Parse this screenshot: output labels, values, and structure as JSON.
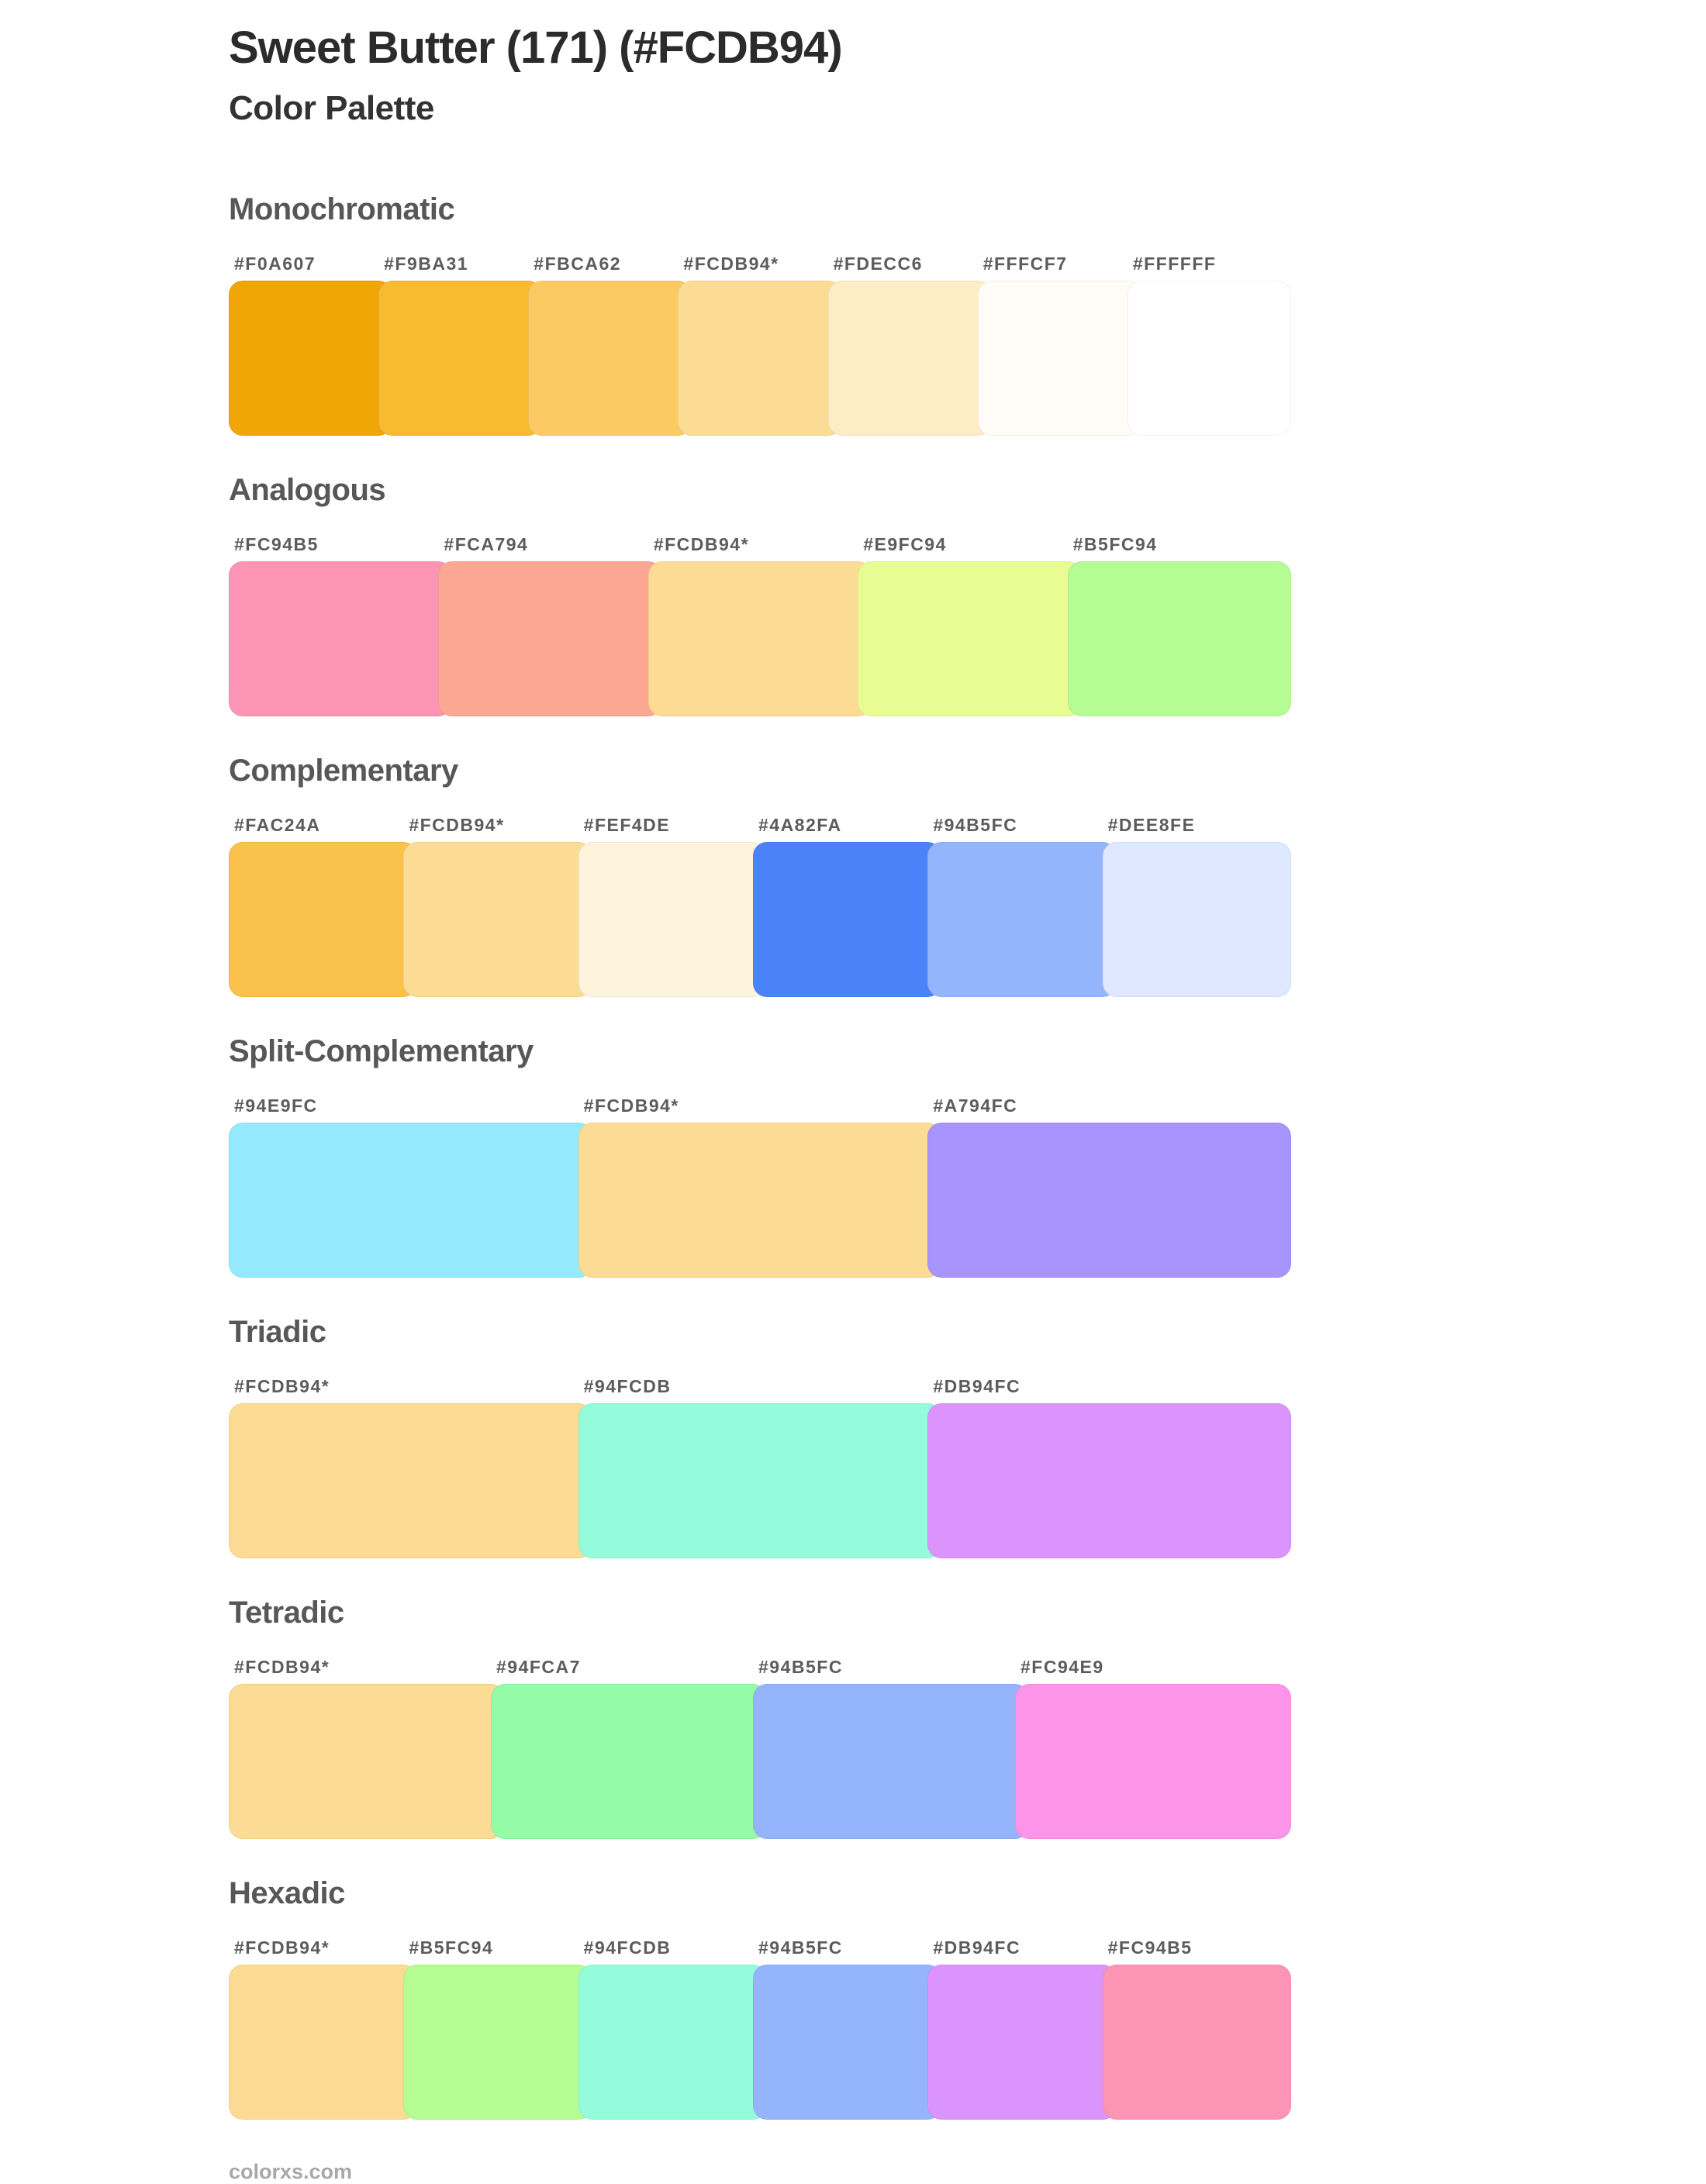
{
  "page": {
    "title": "Sweet Butter (171) (#FCDB94)",
    "subtitle": "Color Palette",
    "footer": "colorxs.com",
    "base_color": "#FCDB94"
  },
  "palettes": [
    {
      "id": "monochromatic",
      "name": "Monochromatic",
      "swatches": [
        {
          "label": "#F0A607",
          "color": "#F0A607"
        },
        {
          "label": "#F9BA31",
          "color": "#F9BA31"
        },
        {
          "label": "#FBCA62",
          "color": "#FBCA62"
        },
        {
          "label": "#FCDB94*",
          "color": "#FCDB94"
        },
        {
          "label": "#FDECC6",
          "color": "#FDECC6"
        },
        {
          "label": "#FFFCF7",
          "color": "#FFFCF7"
        },
        {
          "label": "#FFFFFF",
          "color": "#FFFFFF"
        }
      ]
    },
    {
      "id": "analogous",
      "name": "Analogous",
      "swatches": [
        {
          "label": "#FC94B5",
          "color": "#FC94B5"
        },
        {
          "label": "#FCA794",
          "color": "#FCA794"
        },
        {
          "label": "#FCDB94*",
          "color": "#FCDB94"
        },
        {
          "label": "#E9FC94",
          "color": "#E9FC94"
        },
        {
          "label": "#B5FC94",
          "color": "#B5FC94"
        }
      ]
    },
    {
      "id": "complementary",
      "name": "Complementary",
      "swatches": [
        {
          "label": "#FAC24A",
          "color": "#FAC24A"
        },
        {
          "label": "#FCDB94*",
          "color": "#FCDB94"
        },
        {
          "label": "#FEF4DE",
          "color": "#FEF4DE"
        },
        {
          "label": "#4A82FA",
          "color": "#4A82FA"
        },
        {
          "label": "#94B5FC",
          "color": "#94B5FC"
        },
        {
          "label": "#DEE8FE",
          "color": "#DEE8FE"
        }
      ]
    },
    {
      "id": "split-complementary",
      "name": "Split-Complementary",
      "swatches": [
        {
          "label": "#94E9FC",
          "color": "#94E9FC"
        },
        {
          "label": "#FCDB94*",
          "color": "#FCDB94"
        },
        {
          "label": "#A794FC",
          "color": "#A794FC"
        }
      ]
    },
    {
      "id": "triadic",
      "name": "Triadic",
      "swatches": [
        {
          "label": "#FCDB94*",
          "color": "#FCDB94"
        },
        {
          "label": "#94FCDB",
          "color": "#94FCDB"
        },
        {
          "label": "#DB94FC",
          "color": "#DB94FC"
        }
      ]
    },
    {
      "id": "tetradic",
      "name": "Tetradic",
      "swatches": [
        {
          "label": "#FCDB94*",
          "color": "#FCDB94"
        },
        {
          "label": "#94FCA7",
          "color": "#94FCA7"
        },
        {
          "label": "#94B5FC",
          "color": "#94B5FC"
        },
        {
          "label": "#FC94E9",
          "color": "#FC94E9"
        }
      ]
    },
    {
      "id": "hexadic",
      "name": "Hexadic",
      "swatches": [
        {
          "label": "#FCDB94*",
          "color": "#FCDB94"
        },
        {
          "label": "#B5FC94",
          "color": "#B5FC94"
        },
        {
          "label": "#94FCDB",
          "color": "#94FCDB"
        },
        {
          "label": "#94B5FC",
          "color": "#94B5FC"
        },
        {
          "label": "#DB94FC",
          "color": "#DB94FC"
        },
        {
          "label": "#FC94B5",
          "color": "#FC94B5"
        }
      ]
    }
  ]
}
